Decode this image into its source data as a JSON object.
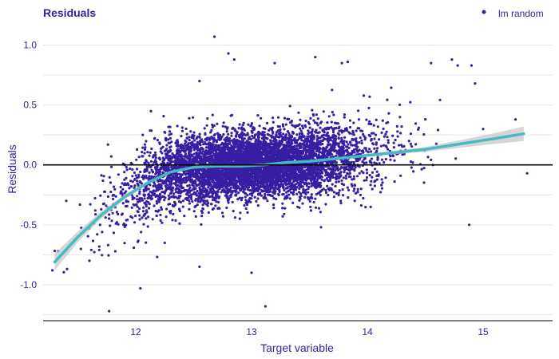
{
  "colors": {
    "title": "#371ea3",
    "text": "#371ea3",
    "points": "#371ea3",
    "smooth_line": "#46bac2",
    "band": "#c8c8c8",
    "zero_line": "#000000",
    "grid": "#e6e6e6",
    "axis": "#000000"
  },
  "chart_data": {
    "type": "scatter",
    "title": "Residuals",
    "xlabel": "Target variable",
    "ylabel": "Residuals",
    "xlim": [
      11.2,
      15.6
    ],
    "ylim": [
      -1.3,
      1.15
    ],
    "x_ticks": [
      12,
      13,
      14,
      15
    ],
    "x_tick_labels": [
      "12",
      "13",
      "14",
      "15"
    ],
    "y_ticks": [
      1.0,
      0.5,
      0.0,
      -0.5,
      -1.0
    ],
    "y_tick_labels": [
      "1.0",
      "0.5",
      "0.0",
      "-0.5",
      "-1.0"
    ],
    "y_minor_grid": [
      0.75,
      0.25,
      -0.25,
      -0.75,
      -1.25
    ],
    "reference_line_y": 0,
    "grid": true,
    "legend": {
      "position": "top-right",
      "entries": [
        "lm random"
      ]
    },
    "series": [
      {
        "name": "lm random",
        "type": "scatter",
        "note": "dense cloud of roughly 9000 observations, centred near (13.0, 0.0); outliers listed below",
        "outliers": [
          {
            "x": 12.68,
            "y": 1.07
          },
          {
            "x": 12.8,
            "y": 0.93
          },
          {
            "x": 12.85,
            "y": 0.88
          },
          {
            "x": 12.55,
            "y": 0.7
          },
          {
            "x": 13.2,
            "y": 0.85
          },
          {
            "x": 13.55,
            "y": 0.9
          },
          {
            "x": 13.78,
            "y": 0.85
          },
          {
            "x": 13.83,
            "y": 0.86
          },
          {
            "x": 14.55,
            "y": 0.85
          },
          {
            "x": 14.73,
            "y": 0.88
          },
          {
            "x": 14.78,
            "y": 0.83
          },
          {
            "x": 14.9,
            "y": 0.83
          },
          {
            "x": 14.93,
            "y": 0.68
          },
          {
            "x": 11.76,
            "y": 0.17
          },
          {
            "x": 15.28,
            "y": 0.38
          },
          {
            "x": 15.38,
            "y": -0.07
          },
          {
            "x": 11.28,
            "y": -0.88
          },
          {
            "x": 11.33,
            "y": -0.72
          },
          {
            "x": 11.6,
            "y": -0.8
          },
          {
            "x": 12.04,
            "y": -1.03
          },
          {
            "x": 11.77,
            "y": -1.22
          },
          {
            "x": 12.55,
            "y": -0.85
          },
          {
            "x": 13.0,
            "y": -0.9
          },
          {
            "x": 13.12,
            "y": -1.18
          },
          {
            "x": 14.88,
            "y": -0.5
          },
          {
            "x": 15.0,
            "y": 0.3
          },
          {
            "x": 12.25,
            "y": -0.65
          },
          {
            "x": 11.4,
            "y": -0.3
          },
          {
            "x": 11.65,
            "y": -0.38
          },
          {
            "x": 13.6,
            "y": -0.52
          }
        ]
      },
      {
        "name": "smooth",
        "type": "line",
        "x": [
          11.3,
          11.5,
          11.7,
          11.9,
          12.1,
          12.3,
          12.5,
          12.7,
          12.9,
          13.1,
          13.3,
          13.5,
          13.7,
          13.9,
          14.1,
          14.3,
          14.5,
          14.7,
          14.9,
          15.1,
          15.35
        ],
        "y": [
          -0.81,
          -0.6,
          -0.42,
          -0.27,
          -0.15,
          -0.06,
          -0.02,
          -0.01,
          -0.01,
          0.0,
          0.02,
          0.03,
          0.05,
          0.07,
          0.09,
          0.11,
          0.13,
          0.16,
          0.19,
          0.22,
          0.26
        ],
        "band_half_width": [
          0.07,
          0.045,
          0.03,
          0.02,
          0.015,
          0.01,
          0.008,
          0.008,
          0.008,
          0.008,
          0.008,
          0.008,
          0.009,
          0.01,
          0.012,
          0.015,
          0.02,
          0.028,
          0.035,
          0.045,
          0.06
        ]
      }
    ]
  }
}
